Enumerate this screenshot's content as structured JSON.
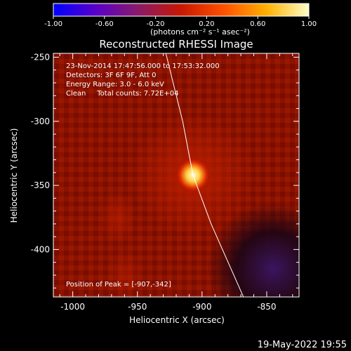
{
  "colorbar": {
    "ticks": [
      -1.0,
      -0.6,
      -0.2,
      0.2,
      0.6,
      1.0
    ],
    "tick_labels": [
      "-1.00",
      "-0.60",
      "-0.20",
      "0.20",
      "0.60",
      "1.00"
    ],
    "range": [
      -1.0,
      1.0
    ],
    "unit_label": "(photons cm⁻² s⁻¹ asec⁻²)",
    "colors": [
      "#0000ff",
      "#5a00c8",
      "#8a1a6a",
      "#c81800",
      "#ff5000",
      "#ffb000",
      "#ffffc8"
    ]
  },
  "chart_data": {
    "type": "heatmap",
    "title": "Reconstructed RHESSI Image",
    "xlabel": "Heliocentric X (arcsec)",
    "ylabel": "Heliocentric Y (arcsec)",
    "xlim": [
      -1015,
      -825
    ],
    "ylim": [
      -437,
      -247
    ],
    "x_ticks": [
      -1000,
      -950,
      -900,
      -850
    ],
    "x_tick_labels": [
      "-1000",
      "-950",
      "-900",
      "-850"
    ],
    "y_ticks": [
      -250,
      -300,
      -350,
      -400
    ],
    "y_tick_labels": [
      "-250",
      "-300",
      "-350",
      "-400"
    ],
    "annotations": [
      "23-Nov-2014 17:47:56.000 to 17:53:32.000",
      "Detectors: 3F 6F 9F, Att 0",
      "Energy Range: 3.0 - 6.0 keV",
      "Clean     Total counts: 7.72E+04"
    ],
    "peak_label": "Position of Peak = [-907,-342]",
    "peak": {
      "x": -907,
      "y": -342,
      "value": 1.0
    },
    "secondary_sources": [
      {
        "x": -965,
        "y": -375,
        "value": 0.22
      },
      {
        "x": -960,
        "y": -420,
        "value": 0.18
      }
    ],
    "dark_region": {
      "x": -845,
      "y": -415,
      "value": -0.6
    },
    "limb": [
      [
        -928,
        -247
      ],
      [
        -915,
        -300
      ],
      [
        -907,
        -342
      ],
      [
        -893,
        -380
      ],
      [
        -868,
        -437
      ]
    ]
  },
  "footer": {
    "timestamp": "19-May-2022 19:55"
  }
}
